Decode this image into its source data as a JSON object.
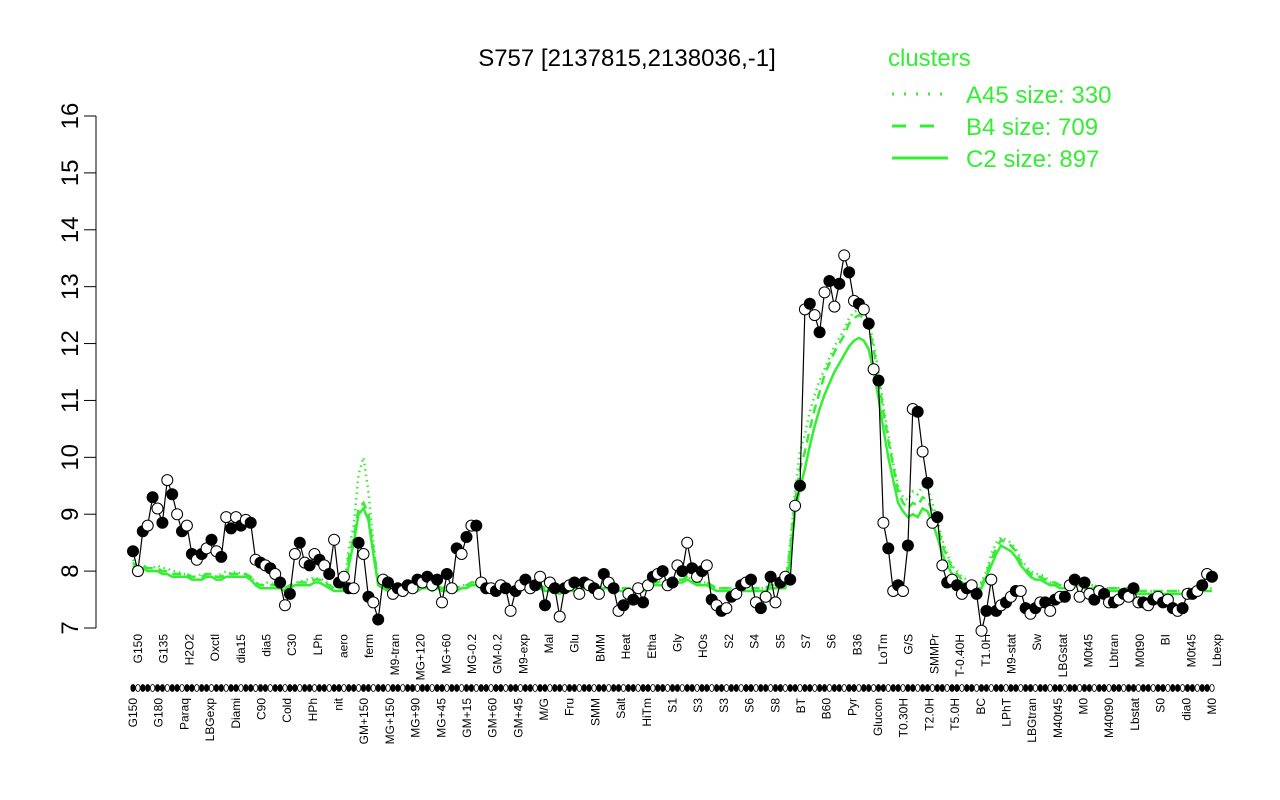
{
  "chart_data": {
    "type": "line",
    "title": "S757 [2137815,2138036,-1]",
    "xlabel": "",
    "ylabel": "",
    "ylim": [
      7,
      16
    ],
    "yticks": [
      7,
      8,
      9,
      10,
      11,
      12,
      13,
      14,
      15,
      16
    ],
    "colors": {
      "clusters": "#33ee33",
      "observed": "#000000"
    },
    "legend": {
      "title": "clusters",
      "placement": "top-right",
      "entries": [
        {
          "label": "A45 size: 330",
          "style": "dotted"
        },
        {
          "label": "B4 size: 709",
          "style": "dashed"
        },
        {
          "label": "C2 size: 897",
          "style": "solid"
        }
      ]
    },
    "x_labels_row1": [
      "G150",
      "G135",
      "H2O2",
      "Oxctl",
      "dia15",
      "dia5",
      "C30",
      "LPh",
      "aero",
      "ferm",
      "M9-tran",
      "MG+120",
      "MG+60",
      "MG-0.2",
      "GM-0.2",
      "M9-exp",
      "Mal",
      "Glu",
      "BMM",
      "Heat",
      "Etha",
      "Gly",
      "HOs",
      "S2",
      "S4",
      "S5",
      "S7",
      "S6",
      "B36",
      "LoTm",
      "G/S",
      "SMMPr",
      "T-0.40H",
      "T1.0H",
      "M9-stat",
      "Sw",
      "LBGstat",
      "M0t45",
      "Lbtran",
      "M0t90",
      "BI",
      "M0t45",
      "Lbexp"
    ],
    "x_labels_row2": [
      "G150",
      "G180",
      "Paraq",
      "LBGexp",
      "Diami",
      "C90",
      "Cold",
      "HPh",
      "nit",
      "GM+150",
      "MG+150",
      "MG+90",
      "MG+45",
      "GM+15",
      "GM+60",
      "GM+45",
      "M/G",
      "Fru",
      "SMM",
      "Salt",
      "HiTm",
      "S1",
      "S3",
      "S3",
      "S6",
      "S8",
      "BT",
      "B60",
      "Pyr",
      "Glucon",
      "T0.30H",
      "T2.0H",
      "T5.0H",
      "BC",
      "LPhT",
      "LBGtran",
      "M40t45",
      "M0",
      "M40t90",
      "Lbstat",
      "S0",
      "dia0",
      "M0"
    ],
    "series": [
      {
        "name": "",
        "kind": "observed",
        "values": [
          8.35,
          8.0,
          8.7,
          8.8,
          9.3,
          9.1,
          8.85,
          9.6,
          9.35,
          9.0,
          8.7,
          8.8,
          8.3,
          8.2,
          8.3,
          8.4,
          8.55,
          8.35,
          8.25,
          8.95,
          8.75,
          8.95,
          8.8,
          8.9,
          8.85,
          8.2,
          8.15,
          8.1,
          8.05,
          7.95,
          7.8,
          7.4,
          7.6,
          8.3,
          8.5,
          8.15,
          8.1,
          8.3,
          8.2,
          8.1,
          7.95,
          8.55,
          7.8,
          7.9,
          7.7,
          7.7,
          8.5,
          8.3,
          7.55,
          7.45,
          7.15,
          7.85,
          7.8,
          7.6,
          7.7,
          7.65,
          7.75,
          7.7,
          7.85,
          7.8,
          7.9,
          7.75,
          7.85,
          7.45,
          7.95,
          7.7,
          8.4,
          8.3,
          8.6,
          8.8,
          8.8,
          7.8,
          7.7,
          7.7,
          7.65,
          7.75,
          7.7,
          7.3,
          7.65,
          7.75,
          7.85,
          7.7,
          7.75,
          7.9,
          7.4,
          7.8,
          7.7,
          7.2,
          7.7,
          7.75,
          7.8,
          7.6,
          7.8,
          7.75,
          7.7,
          7.6,
          7.95,
          7.8,
          7.7,
          7.3,
          7.4,
          7.6,
          7.5,
          7.7,
          7.45,
          7.75,
          7.9,
          7.95,
          8.0,
          7.75,
          7.8,
          8.1,
          8.0,
          8.5,
          8.05,
          7.9,
          8.0,
          8.1,
          7.5,
          7.4,
          7.3,
          7.35,
          7.55,
          7.6,
          7.75,
          7.8,
          7.85,
          7.45,
          7.35,
          7.55,
          7.9,
          7.45,
          7.8,
          7.9,
          7.85,
          9.15,
          9.5,
          12.6,
          12.7,
          12.5,
          12.2,
          12.9,
          13.1,
          12.65,
          13.05,
          13.55,
          13.25,
          12.75,
          12.7,
          12.6,
          12.35,
          11.55,
          11.35,
          8.85,
          8.4,
          7.65,
          7.75,
          7.65,
          8.45,
          10.85,
          10.8,
          10.1,
          9.55,
          8.85,
          8.95,
          8.1,
          7.8,
          7.85,
          7.75,
          7.6,
          7.7,
          7.75,
          7.6,
          6.95,
          7.3,
          7.85,
          7.3,
          7.4,
          7.45,
          7.55,
          7.65,
          7.65,
          7.35,
          7.25,
          7.35,
          7.45,
          7.45,
          7.3,
          7.5,
          7.55,
          7.55,
          7.75,
          7.85,
          7.55,
          7.8,
          7.6,
          7.5,
          7.65,
          7.6,
          7.45,
          7.45,
          7.5,
          7.6,
          7.55,
          7.7,
          7.45,
          7.45,
          7.4,
          7.5,
          7.55,
          7.45,
          7.5,
          7.35,
          7.3,
          7.35,
          7.6,
          7.6,
          7.65,
          7.75,
          7.95,
          7.9
        ]
      },
      {
        "name": "",
        "kind": "cluster",
        "style": "dotted",
        "values": [
          8.2,
          8.05,
          8.1,
          8.05,
          8.05,
          8.1,
          8.05,
          8.05,
          8.0,
          8.0,
          7.95,
          7.95,
          7.9,
          7.9,
          7.95,
          7.95,
          7.95,
          7.9,
          7.95,
          8.0,
          7.95,
          8.0,
          7.95,
          7.95,
          7.9,
          7.8,
          7.75,
          7.8,
          7.8,
          7.75,
          7.75,
          7.7,
          7.75,
          7.8,
          7.8,
          7.85,
          7.85,
          7.9,
          7.85,
          7.85,
          7.75,
          7.75,
          7.7,
          7.7,
          8.4,
          8.8,
          9.7,
          10.0,
          9.4,
          8.5,
          7.8,
          7.75,
          7.7,
          7.7,
          7.75,
          7.7,
          7.75,
          7.75,
          7.7,
          7.75,
          7.75,
          7.7,
          7.75,
          7.7,
          7.75,
          7.7,
          7.7,
          7.75,
          7.75,
          7.8,
          7.8,
          7.75,
          7.75,
          7.7,
          7.7,
          7.7,
          7.7,
          7.7,
          7.7,
          7.75,
          7.75,
          7.75,
          7.75,
          7.75,
          7.7,
          7.7,
          7.7,
          7.65,
          7.7,
          7.7,
          7.7,
          7.7,
          7.75,
          7.75,
          7.7,
          7.7,
          7.8,
          7.75,
          7.75,
          7.7,
          7.7,
          7.7,
          7.7,
          7.7,
          7.7,
          7.75,
          7.8,
          7.8,
          7.85,
          7.8,
          7.8,
          7.85,
          7.85,
          7.9,
          7.85,
          7.8,
          7.8,
          7.8,
          7.75,
          7.7,
          7.7,
          7.7,
          7.7,
          7.7,
          7.75,
          7.75,
          7.75,
          7.7,
          7.7,
          7.7,
          7.8,
          7.75,
          7.75,
          7.75,
          8.5,
          9.4,
          10.1,
          10.4,
          10.8,
          11.1,
          11.35,
          11.55,
          11.75,
          11.95,
          12.1,
          12.25,
          12.45,
          12.55,
          12.6,
          12.55,
          12.4,
          12.0,
          11.5,
          10.9,
          10.4,
          9.9,
          9.5,
          9.3,
          9.25,
          9.4,
          9.35,
          9.5,
          9.45,
          9.2,
          8.9,
          8.55,
          8.3,
          8.1,
          8.0,
          7.9,
          7.85,
          7.8,
          7.8,
          7.8,
          8.0,
          8.3,
          8.5,
          8.6,
          8.55,
          8.5,
          8.4,
          8.2,
          8.1,
          8.0,
          7.95,
          7.95,
          7.9,
          7.8,
          7.8,
          7.75,
          7.75,
          7.8,
          7.8,
          7.8,
          7.75,
          7.75,
          7.75,
          7.7,
          7.7,
          7.7,
          7.7,
          7.7,
          7.7,
          7.7,
          7.7,
          7.65,
          7.65,
          7.65,
          7.65,
          7.65,
          7.65,
          7.65,
          7.65,
          7.65,
          7.65,
          7.7,
          7.7,
          7.7,
          7.7,
          7.7,
          7.7
        ]
      },
      {
        "name": "",
        "kind": "cluster",
        "style": "dashed",
        "values": [
          8.15,
          8.05,
          8.1,
          8.05,
          8.05,
          8.05,
          8.0,
          8.0,
          7.95,
          7.95,
          7.95,
          7.95,
          7.9,
          7.9,
          7.9,
          7.95,
          7.95,
          7.9,
          7.9,
          7.95,
          7.95,
          7.95,
          7.95,
          7.95,
          7.9,
          7.8,
          7.75,
          7.75,
          7.75,
          7.75,
          7.75,
          7.7,
          7.75,
          7.8,
          7.8,
          7.8,
          7.8,
          7.85,
          7.85,
          7.8,
          7.75,
          7.7,
          7.7,
          7.7,
          8.25,
          8.6,
          9.1,
          9.2,
          9.0,
          8.4,
          7.8,
          7.75,
          7.7,
          7.7,
          7.75,
          7.7,
          7.75,
          7.75,
          7.7,
          7.75,
          7.75,
          7.7,
          7.75,
          7.7,
          7.7,
          7.7,
          7.7,
          7.75,
          7.75,
          7.8,
          7.8,
          7.75,
          7.75,
          7.7,
          7.7,
          7.7,
          7.7,
          7.7,
          7.7,
          7.7,
          7.75,
          7.75,
          7.75,
          7.75,
          7.7,
          7.7,
          7.7,
          7.65,
          7.7,
          7.7,
          7.7,
          7.7,
          7.75,
          7.75,
          7.7,
          7.7,
          7.75,
          7.75,
          7.75,
          7.7,
          7.7,
          7.7,
          7.7,
          7.7,
          7.7,
          7.75,
          7.8,
          7.8,
          7.8,
          7.8,
          7.8,
          7.85,
          7.85,
          7.9,
          7.85,
          7.8,
          7.8,
          7.8,
          7.75,
          7.7,
          7.7,
          7.7,
          7.7,
          7.7,
          7.7,
          7.7,
          7.7,
          7.7,
          7.7,
          7.7,
          7.75,
          7.75,
          7.75,
          7.75,
          8.4,
          9.25,
          9.8,
          10.1,
          10.5,
          10.85,
          11.15,
          11.45,
          11.65,
          11.85,
          12.0,
          12.15,
          12.35,
          12.45,
          12.5,
          12.45,
          12.3,
          11.9,
          11.4,
          10.8,
          10.3,
          9.85,
          9.4,
          9.2,
          9.1,
          9.2,
          9.15,
          9.3,
          9.25,
          9.05,
          8.8,
          8.45,
          8.25,
          8.05,
          7.95,
          7.85,
          7.8,
          7.8,
          7.75,
          7.75,
          7.95,
          8.2,
          8.4,
          8.55,
          8.5,
          8.45,
          8.35,
          8.15,
          8.05,
          7.95,
          7.9,
          7.9,
          7.85,
          7.8,
          7.8,
          7.75,
          7.75,
          7.75,
          7.8,
          7.8,
          7.75,
          7.75,
          7.75,
          7.7,
          7.7,
          7.7,
          7.7,
          7.7,
          7.7,
          7.7,
          7.65,
          7.65,
          7.65,
          7.65,
          7.65,
          7.65,
          7.65,
          7.65,
          7.65,
          7.65,
          7.65,
          7.65,
          7.7,
          7.7,
          7.7,
          7.7,
          7.7
        ]
      },
      {
        "name": "",
        "kind": "cluster",
        "style": "solid",
        "values": [
          8.1,
          8.0,
          8.05,
          8.0,
          8.0,
          8.0,
          7.95,
          7.95,
          7.9,
          7.9,
          7.9,
          7.9,
          7.85,
          7.85,
          7.85,
          7.9,
          7.9,
          7.85,
          7.85,
          7.9,
          7.9,
          7.9,
          7.9,
          7.9,
          7.85,
          7.75,
          7.7,
          7.7,
          7.7,
          7.7,
          7.7,
          7.65,
          7.7,
          7.75,
          7.75,
          7.75,
          7.75,
          7.8,
          7.8,
          7.75,
          7.7,
          7.65,
          7.65,
          7.65,
          8.1,
          8.5,
          9.0,
          9.1,
          8.9,
          8.3,
          7.75,
          7.7,
          7.65,
          7.65,
          7.7,
          7.65,
          7.7,
          7.7,
          7.65,
          7.7,
          7.7,
          7.65,
          7.7,
          7.65,
          7.65,
          7.65,
          7.65,
          7.7,
          7.7,
          7.75,
          7.75,
          7.7,
          7.7,
          7.65,
          7.65,
          7.65,
          7.65,
          7.65,
          7.65,
          7.65,
          7.7,
          7.7,
          7.7,
          7.7,
          7.65,
          7.65,
          7.65,
          7.6,
          7.65,
          7.65,
          7.65,
          7.65,
          7.7,
          7.7,
          7.65,
          7.65,
          7.7,
          7.7,
          7.7,
          7.65,
          7.65,
          7.65,
          7.65,
          7.65,
          7.65,
          7.7,
          7.75,
          7.75,
          7.75,
          7.75,
          7.75,
          7.8,
          7.8,
          7.85,
          7.8,
          7.75,
          7.75,
          7.75,
          7.7,
          7.65,
          7.65,
          7.65,
          7.65,
          7.65,
          7.65,
          7.65,
          7.65,
          7.65,
          7.65,
          7.65,
          7.7,
          7.7,
          7.7,
          7.7,
          8.2,
          9.05,
          9.45,
          9.8,
          10.2,
          10.55,
          10.85,
          11.1,
          11.3,
          11.5,
          11.65,
          11.8,
          11.95,
          12.05,
          12.1,
          12.05,
          11.9,
          11.5,
          11.05,
          10.5,
          10.0,
          9.6,
          9.2,
          9.05,
          8.95,
          9.0,
          8.95,
          9.1,
          9.05,
          8.85,
          8.6,
          8.3,
          8.1,
          7.95,
          7.85,
          7.8,
          7.75,
          7.75,
          7.7,
          7.7,
          7.9,
          8.1,
          8.3,
          8.45,
          8.4,
          8.35,
          8.25,
          8.1,
          8.0,
          7.9,
          7.85,
          7.85,
          7.8,
          7.75,
          7.75,
          7.7,
          7.7,
          7.7,
          7.75,
          7.75,
          7.7,
          7.7,
          7.7,
          7.65,
          7.65,
          7.65,
          7.65,
          7.65,
          7.65,
          7.65,
          7.6,
          7.6,
          7.6,
          7.6,
          7.6,
          7.6,
          7.6,
          7.6,
          7.6,
          7.6,
          7.6,
          7.6,
          7.65,
          7.65,
          7.65,
          7.65,
          7.65
        ]
      }
    ]
  }
}
